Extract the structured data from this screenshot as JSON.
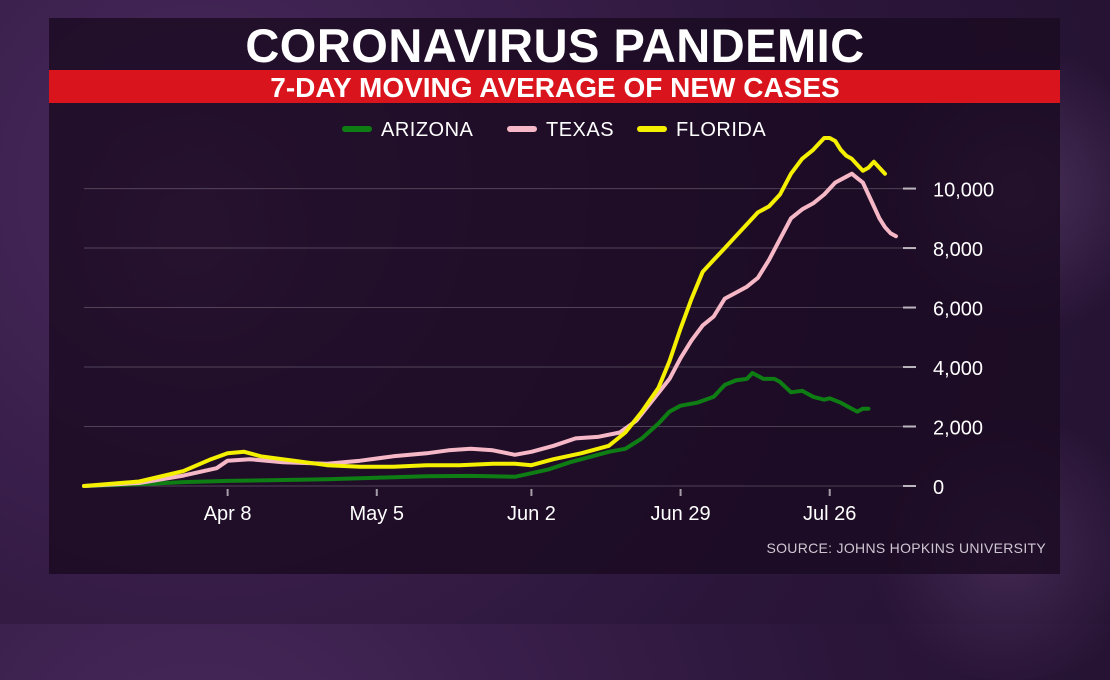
{
  "title": "CORONAVIRUS PANDEMIC",
  "subtitle": "7-DAY MOVING AVERAGE OF NEW CASES",
  "source": "SOURCE: JOHNS HOPKINS UNIVERSITY",
  "colors": {
    "arizona": "#0e7d14",
    "texas": "#f6b8c6",
    "florida": "#f4f000",
    "banner": "#d9141c"
  },
  "chart_data": {
    "type": "line",
    "x_start": "Mar 13",
    "x_end": "Jul 26",
    "x_ticks": [
      {
        "day": 26,
        "label": "Apr 8"
      },
      {
        "day": 53,
        "label": "May 5"
      },
      {
        "day": 81,
        "label": "Jun 2"
      },
      {
        "day": 108,
        "label": "Jun 29"
      },
      {
        "day": 135,
        "label": "Jul 26"
      }
    ],
    "y_ticks": [
      0,
      2000,
      4000,
      6000,
      8000,
      10000
    ],
    "y_tick_labels": [
      "0",
      "2,000",
      "4,000",
      "6,000",
      "8,000",
      "10,000"
    ],
    "ylim": [
      0,
      11700
    ],
    "grid": true,
    "legend_position": "top-center",
    "series": [
      {
        "name": "ARIZONA",
        "color": "#0e7d14",
        "points": [
          [
            0,
            0
          ],
          [
            10,
            60
          ],
          [
            18,
            130
          ],
          [
            26,
            170
          ],
          [
            35,
            200
          ],
          [
            44,
            230
          ],
          [
            53,
            280
          ],
          [
            62,
            330
          ],
          [
            70,
            340
          ],
          [
            78,
            310
          ],
          [
            84,
            550
          ],
          [
            88,
            800
          ],
          [
            92,
            1000
          ],
          [
            95,
            1150
          ],
          [
            98,
            1250
          ],
          [
            101,
            1600
          ],
          [
            104,
            2100
          ],
          [
            106,
            2500
          ],
          [
            108,
            2700
          ],
          [
            111,
            2800
          ],
          [
            114,
            3000
          ],
          [
            116,
            3400
          ],
          [
            118,
            3550
          ],
          [
            120,
            3600
          ],
          [
            121,
            3800
          ],
          [
            123,
            3600
          ],
          [
            125,
            3600
          ],
          [
            126,
            3500
          ],
          [
            128,
            3150
          ],
          [
            130,
            3200
          ],
          [
            132,
            3000
          ],
          [
            134,
            2900
          ],
          [
            135,
            2950
          ],
          [
            137,
            2800
          ],
          [
            139,
            2600
          ],
          [
            140,
            2500
          ],
          [
            141,
            2600
          ],
          [
            142,
            2600
          ]
        ]
      },
      {
        "name": "TEXAS",
        "color": "#f6b8c6",
        "points": [
          [
            0,
            0
          ],
          [
            10,
            100
          ],
          [
            18,
            350
          ],
          [
            24,
            600
          ],
          [
            26,
            850
          ],
          [
            30,
            900
          ],
          [
            36,
            800
          ],
          [
            44,
            750
          ],
          [
            50,
            850
          ],
          [
            56,
            1000
          ],
          [
            62,
            1100
          ],
          [
            66,
            1200
          ],
          [
            70,
            1250
          ],
          [
            74,
            1200
          ],
          [
            78,
            1050
          ],
          [
            81,
            1150
          ],
          [
            85,
            1350
          ],
          [
            89,
            1600
          ],
          [
            93,
            1650
          ],
          [
            97,
            1800
          ],
          [
            100,
            2200
          ],
          [
            103,
            2900
          ],
          [
            106,
            3600
          ],
          [
            108,
            4300
          ],
          [
            110,
            4900
          ],
          [
            112,
            5400
          ],
          [
            114,
            5700
          ],
          [
            116,
            6300
          ],
          [
            118,
            6500
          ],
          [
            120,
            6700
          ],
          [
            122,
            7000
          ],
          [
            124,
            7600
          ],
          [
            126,
            8300
          ],
          [
            128,
            9000
          ],
          [
            130,
            9300
          ],
          [
            132,
            9500
          ],
          [
            134,
            9800
          ],
          [
            136,
            10200
          ],
          [
            138,
            10400
          ],
          [
            139,
            10500
          ],
          [
            140,
            10350
          ],
          [
            141,
            10200
          ],
          [
            142,
            9800
          ],
          [
            143,
            9400
          ],
          [
            144,
            9000
          ],
          [
            145,
            8700
          ],
          [
            146,
            8500
          ],
          [
            147,
            8400
          ]
        ]
      },
      {
        "name": "FLORIDA",
        "color": "#f4f000",
        "points": [
          [
            0,
            0
          ],
          [
            10,
            150
          ],
          [
            18,
            500
          ],
          [
            23,
            900
          ],
          [
            26,
            1100
          ],
          [
            29,
            1150
          ],
          [
            32,
            1000
          ],
          [
            38,
            850
          ],
          [
            44,
            700
          ],
          [
            50,
            650
          ],
          [
            56,
            650
          ],
          [
            62,
            700
          ],
          [
            68,
            700
          ],
          [
            74,
            750
          ],
          [
            78,
            750
          ],
          [
            81,
            700
          ],
          [
            85,
            900
          ],
          [
            90,
            1100
          ],
          [
            95,
            1350
          ],
          [
            98,
            1800
          ],
          [
            101,
            2500
          ],
          [
            104,
            3300
          ],
          [
            106,
            4200
          ],
          [
            108,
            5300
          ],
          [
            110,
            6300
          ],
          [
            112,
            7200
          ],
          [
            114,
            7600
          ],
          [
            116,
            8000
          ],
          [
            118,
            8400
          ],
          [
            120,
            8800
          ],
          [
            122,
            9200
          ],
          [
            124,
            9400
          ],
          [
            126,
            9800
          ],
          [
            128,
            10500
          ],
          [
            130,
            11000
          ],
          [
            132,
            11300
          ],
          [
            133,
            11500
          ],
          [
            134,
            11700
          ],
          [
            135,
            11700
          ],
          [
            136,
            11600
          ],
          [
            137,
            11300
          ],
          [
            138,
            11100
          ],
          [
            139,
            11000
          ],
          [
            140,
            10800
          ],
          [
            141,
            10600
          ],
          [
            142,
            10700
          ],
          [
            143,
            10900
          ],
          [
            144,
            10700
          ],
          [
            145,
            10500
          ]
        ]
      }
    ]
  }
}
